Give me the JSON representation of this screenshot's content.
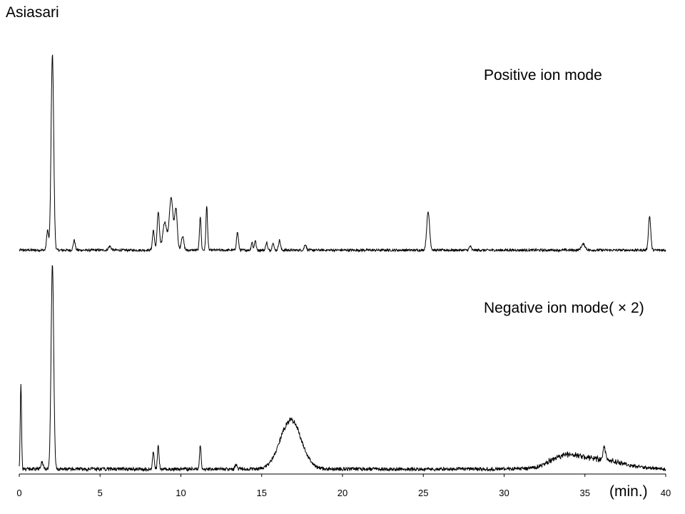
{
  "title": "Asiasari",
  "x_unit": "(min.)",
  "chart_data": {
    "type": "line",
    "title": "Asiasari",
    "xlabel": "(min.)",
    "ylabel": "",
    "xlim": [
      0,
      40
    ],
    "xticks": [
      0,
      5,
      10,
      15,
      20,
      25,
      30,
      35,
      40
    ],
    "grid": false,
    "series": [
      {
        "name": "Positive ion mode",
        "baseline": 0.02,
        "noise": 0.006,
        "peaks": [
          {
            "x": 1.75,
            "h": 0.1,
            "w": 0.06
          },
          {
            "x": 2.05,
            "h": 0.98,
            "w": 0.08
          },
          {
            "x": 3.4,
            "h": 0.05,
            "w": 0.06
          },
          {
            "x": 5.6,
            "h": 0.02,
            "w": 0.08
          },
          {
            "x": 8.3,
            "h": 0.1,
            "w": 0.06
          },
          {
            "x": 8.6,
            "h": 0.19,
            "w": 0.07
          },
          {
            "x": 9.0,
            "h": 0.14,
            "w": 0.12
          },
          {
            "x": 9.4,
            "h": 0.26,
            "w": 0.12
          },
          {
            "x": 9.7,
            "h": 0.2,
            "w": 0.08
          },
          {
            "x": 10.1,
            "h": 0.07,
            "w": 0.08
          },
          {
            "x": 11.2,
            "h": 0.17,
            "w": 0.05
          },
          {
            "x": 11.6,
            "h": 0.22,
            "w": 0.05
          },
          {
            "x": 13.5,
            "h": 0.09,
            "w": 0.06
          },
          {
            "x": 14.4,
            "h": 0.04,
            "w": 0.05
          },
          {
            "x": 14.6,
            "h": 0.05,
            "w": 0.05
          },
          {
            "x": 15.3,
            "h": 0.04,
            "w": 0.05
          },
          {
            "x": 15.7,
            "h": 0.04,
            "w": 0.05
          },
          {
            "x": 16.1,
            "h": 0.05,
            "w": 0.06
          },
          {
            "x": 17.7,
            "h": 0.03,
            "w": 0.06
          },
          {
            "x": 25.3,
            "h": 0.19,
            "w": 0.09
          },
          {
            "x": 27.9,
            "h": 0.02,
            "w": 0.06
          },
          {
            "x": 34.9,
            "h": 0.03,
            "w": 0.12
          },
          {
            "x": 39.0,
            "h": 0.17,
            "w": 0.07
          }
        ]
      },
      {
        "name": "Negative ion mode( × 2)",
        "baseline": 0.03,
        "noise": 0.008,
        "peaks": [
          {
            "x": 0.1,
            "h": 0.4,
            "w": 0.04
          },
          {
            "x": 1.4,
            "h": 0.03,
            "w": 0.08
          },
          {
            "x": 2.05,
            "h": 0.96,
            "w": 0.08
          },
          {
            "x": 8.3,
            "h": 0.08,
            "w": 0.05
          },
          {
            "x": 8.6,
            "h": 0.11,
            "w": 0.05
          },
          {
            "x": 11.2,
            "h": 0.11,
            "w": 0.05
          },
          {
            "x": 13.4,
            "h": 0.02,
            "w": 0.06
          },
          {
            "x": 16.8,
            "h": 0.23,
            "w": 0.65
          },
          {
            "x": 33.6,
            "h": 0.04,
            "w": 0.8
          },
          {
            "x": 35.5,
            "h": 0.05,
            "w": 1.6
          },
          {
            "x": 36.2,
            "h": 0.05,
            "w": 0.08
          }
        ]
      }
    ]
  }
}
